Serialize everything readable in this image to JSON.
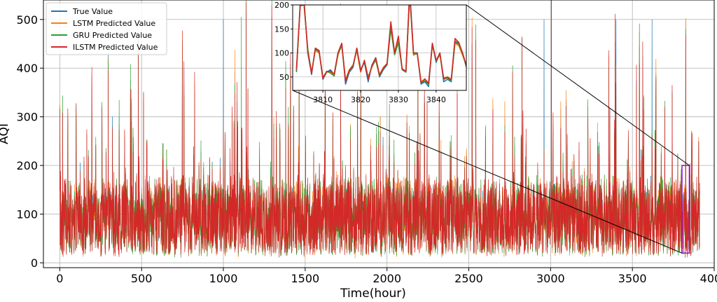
{
  "chart_data": {
    "type": "line",
    "title": "",
    "xlabel": "Time(hour)",
    "ylabel": "AQI",
    "xlim": [
      -100,
      4000
    ],
    "ylim": [
      -10,
      540
    ],
    "xticks": [
      0,
      500,
      1000,
      1500,
      2000,
      2500,
      3000,
      3500,
      4000
    ],
    "xtick_labels": [
      "0",
      "500",
      "1000",
      "1500",
      "2000",
      "2500",
      "3000",
      "3500",
      "4000"
    ],
    "yticks": [
      0,
      100,
      200,
      300,
      400,
      500
    ],
    "ytick_labels": [
      "0",
      "100",
      "200",
      "300",
      "400",
      "500"
    ],
    "grid": true,
    "legend_position": "top-left",
    "series": [
      {
        "name": "True Value",
        "color": "#1f77b4"
      },
      {
        "name": "LSTM Predicted Value",
        "color": "#ff7f0e"
      },
      {
        "name": "GRU Predicted Value",
        "color": "#2ca02c"
      },
      {
        "name": "ILSTM Predicted Value",
        "color": "#d62728"
      }
    ],
    "n_points": 3912,
    "typical_range": [
      30,
      150
    ],
    "notable_peaks": [
      {
        "x": 1000,
        "y": 500,
        "series": "True Value"
      },
      {
        "x": 1110,
        "y": 505,
        "series": "GRU Predicted Value"
      },
      {
        "x": 2960,
        "y": 500,
        "series": "True Value"
      },
      {
        "x": 3400,
        "y": 500,
        "series": "True Value"
      },
      {
        "x": 3620,
        "y": 500,
        "series": "True Value"
      }
    ],
    "zoom_region": {
      "x": [
        3803,
        3848
      ],
      "y": [
        20,
        200
      ]
    },
    "inset": {
      "xlim": [
        3802,
        3848
      ],
      "ylim": [
        22,
        200
      ],
      "xticks": [
        3810,
        3820,
        3830,
        3840
      ],
      "xtick_labels": [
        "3810",
        "3820",
        "3830",
        "3840"
      ],
      "yticks": [
        50,
        100,
        150,
        200
      ],
      "ytick_labels": [
        "50",
        "100",
        "150",
        "200"
      ],
      "x": [
        3803,
        3804,
        3805,
        3806,
        3807,
        3808,
        3809,
        3810,
        3811,
        3812,
        3813,
        3814,
        3815,
        3816,
        3817,
        3818,
        3819,
        3820,
        3821,
        3822,
        3823,
        3824,
        3825,
        3826,
        3827,
        3828,
        3829,
        3830,
        3831,
        3832,
        3833,
        3834,
        3835,
        3836,
        3837,
        3838,
        3839,
        3840,
        3841,
        3842,
        3843,
        3844,
        3845,
        3846,
        3847,
        3848
      ],
      "values": [
        [
          60,
          205,
          210,
          100,
          55,
          110,
          105,
          45,
          60,
          65,
          55,
          100,
          120,
          35,
          60,
          70,
          110,
          65,
          80,
          40,
          75,
          90,
          50,
          65,
          75,
          160,
          100,
          130,
          65,
          60,
          230,
          100,
          100,
          35,
          40,
          30,
          120,
          80,
          100,
          40,
          45,
          40,
          125,
          120,
          100,
          70
        ],
        [
          65,
          200,
          205,
          105,
          60,
          105,
          100,
          50,
          60,
          60,
          55,
          95,
          118,
          45,
          65,
          75,
          105,
          60,
          85,
          50,
          70,
          88,
          55,
          70,
          78,
          155,
          98,
          125,
          68,
          62,
          225,
          95,
          100,
          40,
          45,
          38,
          115,
          85,
          95,
          48,
          50,
          45,
          120,
          115,
          95,
          75
        ],
        [
          62,
          198,
          200,
          108,
          58,
          108,
          102,
          48,
          62,
          58,
          52,
          98,
          115,
          42,
          62,
          72,
          108,
          62,
          82,
          48,
          72,
          85,
          52,
          68,
          76,
          150,
          96,
          122,
          66,
          60,
          220,
          98,
          98,
          38,
          42,
          35,
          118,
          82,
          98,
          45,
          48,
          42,
          122,
          118,
          98,
          72
        ],
        [
          66,
          200,
          208,
          102,
          57,
          110,
          104,
          47,
          61,
          62,
          56,
          100,
          120,
          40,
          64,
          74,
          110,
          62,
          84,
          46,
          74,
          90,
          54,
          68,
          78,
          165,
          100,
          135,
          66,
          62,
          230,
          100,
          100,
          38,
          46,
          36,
          120,
          84,
          100,
          46,
          50,
          44,
          130,
          122,
          100,
          74
        ]
      ]
    }
  }
}
